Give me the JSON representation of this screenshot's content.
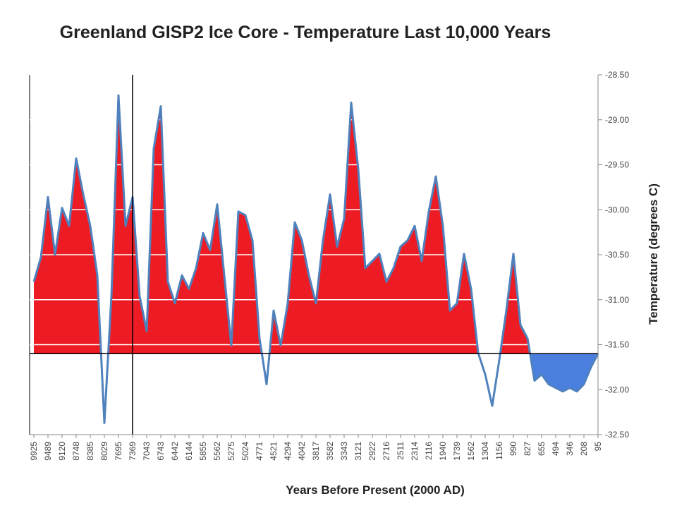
{
  "chart_data": {
    "type": "area",
    "title": "Greenland GISP2 Ice Core - Temperature  Last 10,000 Years",
    "x_label": "Years Before Present (2000 AD)",
    "y_label": "Temperature (degrees C)",
    "categories": [
      "9925",
      null,
      "9489",
      null,
      "9120",
      null,
      "8748",
      null,
      "8385",
      null,
      "8029",
      null,
      "7695",
      null,
      "7369",
      null,
      "7043",
      null,
      "6743",
      null,
      "6442",
      null,
      "6144",
      null,
      "5855",
      null,
      "5562",
      null,
      "5275",
      null,
      "5024",
      null,
      "4771",
      null,
      "4521",
      null,
      "4294",
      null,
      "4042",
      null,
      "3817",
      null,
      "3582",
      null,
      "3343",
      null,
      "3121",
      null,
      "2922",
      null,
      "2716",
      null,
      "2511",
      null,
      "2314",
      null,
      "2116",
      null,
      "1940",
      null,
      "1739",
      null,
      "1562",
      null,
      "1304",
      null,
      "1156",
      null,
      "990",
      null,
      "827",
      null,
      "655",
      null,
      "494",
      null,
      "346",
      null,
      "208",
      null,
      "95"
    ],
    "values": [
      -30.8,
      -30.53,
      -29.86,
      -30.5,
      -29.98,
      -30.18,
      -29.43,
      -29.83,
      -30.18,
      -30.73,
      -32.37,
      -30.96,
      -28.73,
      -30.18,
      -29.86,
      -30.96,
      -31.35,
      -29.32,
      -28.85,
      -30.8,
      -31.04,
      -30.73,
      -30.88,
      -30.65,
      -30.26,
      -30.45,
      -29.94,
      -30.73,
      -31.51,
      -30.02,
      -30.06,
      -30.34,
      -31.43,
      -31.94,
      -31.12,
      -31.51,
      -31.04,
      -30.14,
      -30.34,
      -30.73,
      -31.04,
      -30.34,
      -29.83,
      -30.41,
      -30.1,
      -28.81,
      -29.55,
      -30.65,
      -30.57,
      -30.49,
      -30.8,
      -30.65,
      -30.41,
      -30.34,
      -30.18,
      -30.57,
      -30.02,
      -29.63,
      -30.18,
      -31.12,
      -31.04,
      -30.49,
      -30.88,
      -31.59,
      -31.83,
      -32.18,
      -31.67,
      -31.12,
      -30.49,
      -31.28,
      -31.43,
      -31.9,
      -31.83,
      -31.94,
      -31.98,
      -32.02,
      -31.98,
      -32.02,
      -31.94,
      -31.75,
      -31.6
    ],
    "line_color": "#4f81bd",
    "fill_color": "#ed1c24",
    "below_fill_color": "#4a7fe0",
    "reference_y": -31.6,
    "reference_x": "7369",
    "ylim": [
      -32.5,
      -28.5
    ],
    "yticks": [
      {
        "value": -28.5,
        "label": "-28.50"
      },
      {
        "value": -29,
        "label": "-29.00"
      },
      {
        "value": -29.5,
        "label": "-29.50"
      },
      {
        "value": -30,
        "label": "-30.00"
      },
      {
        "value": -30.5,
        "label": "-30.50"
      },
      {
        "value": -31,
        "label": "-31.00"
      },
      {
        "value": -31.5,
        "label": "-31.50"
      },
      {
        "value": -32,
        "label": "-32.00"
      },
      {
        "value": -32.5,
        "label": "-32.50"
      }
    ],
    "grid": true,
    "y_axis_side": "right"
  }
}
